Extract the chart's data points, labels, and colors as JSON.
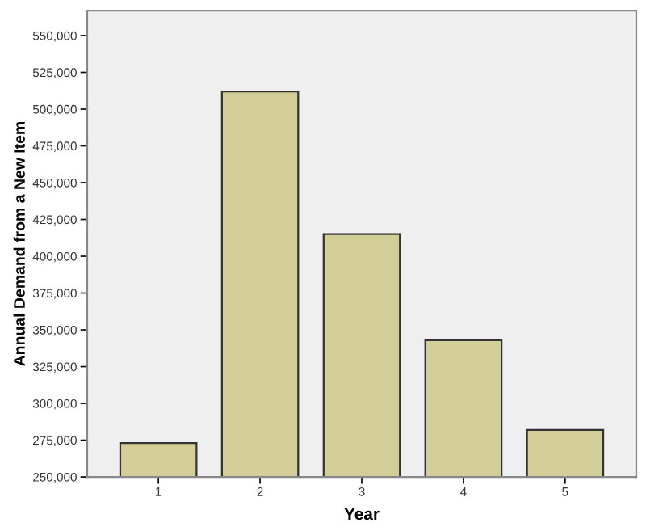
{
  "chart_data": {
    "type": "bar",
    "xlabel": "Year",
    "ylabel": "Annual Demand from a New Item",
    "categories": [
      "1",
      "2",
      "3",
      "4",
      "5"
    ],
    "values": [
      273000,
      512000,
      415000,
      343000,
      282000
    ],
    "color": "#d3ce97",
    "ylim": [
      250000,
      567000
    ],
    "yticks": [
      {
        "value": 250000,
        "label": "250,000"
      },
      {
        "value": 275000,
        "label": "275,000"
      },
      {
        "value": 300000,
        "label": "300,000"
      },
      {
        "value": 325000,
        "label": "325,000"
      },
      {
        "value": 350000,
        "label": "350,000"
      },
      {
        "value": 375000,
        "label": "375,000"
      },
      {
        "value": 400000,
        "label": "400,000"
      },
      {
        "value": 425000,
        "label": "425,000"
      },
      {
        "value": 450000,
        "label": "450,000"
      },
      {
        "value": 475000,
        "label": "475,000"
      },
      {
        "value": 500000,
        "label": "500,000"
      },
      {
        "value": 525000,
        "label": "525,000"
      },
      {
        "value": 550000,
        "label": "550,000"
      }
    ],
    "grid": false
  }
}
